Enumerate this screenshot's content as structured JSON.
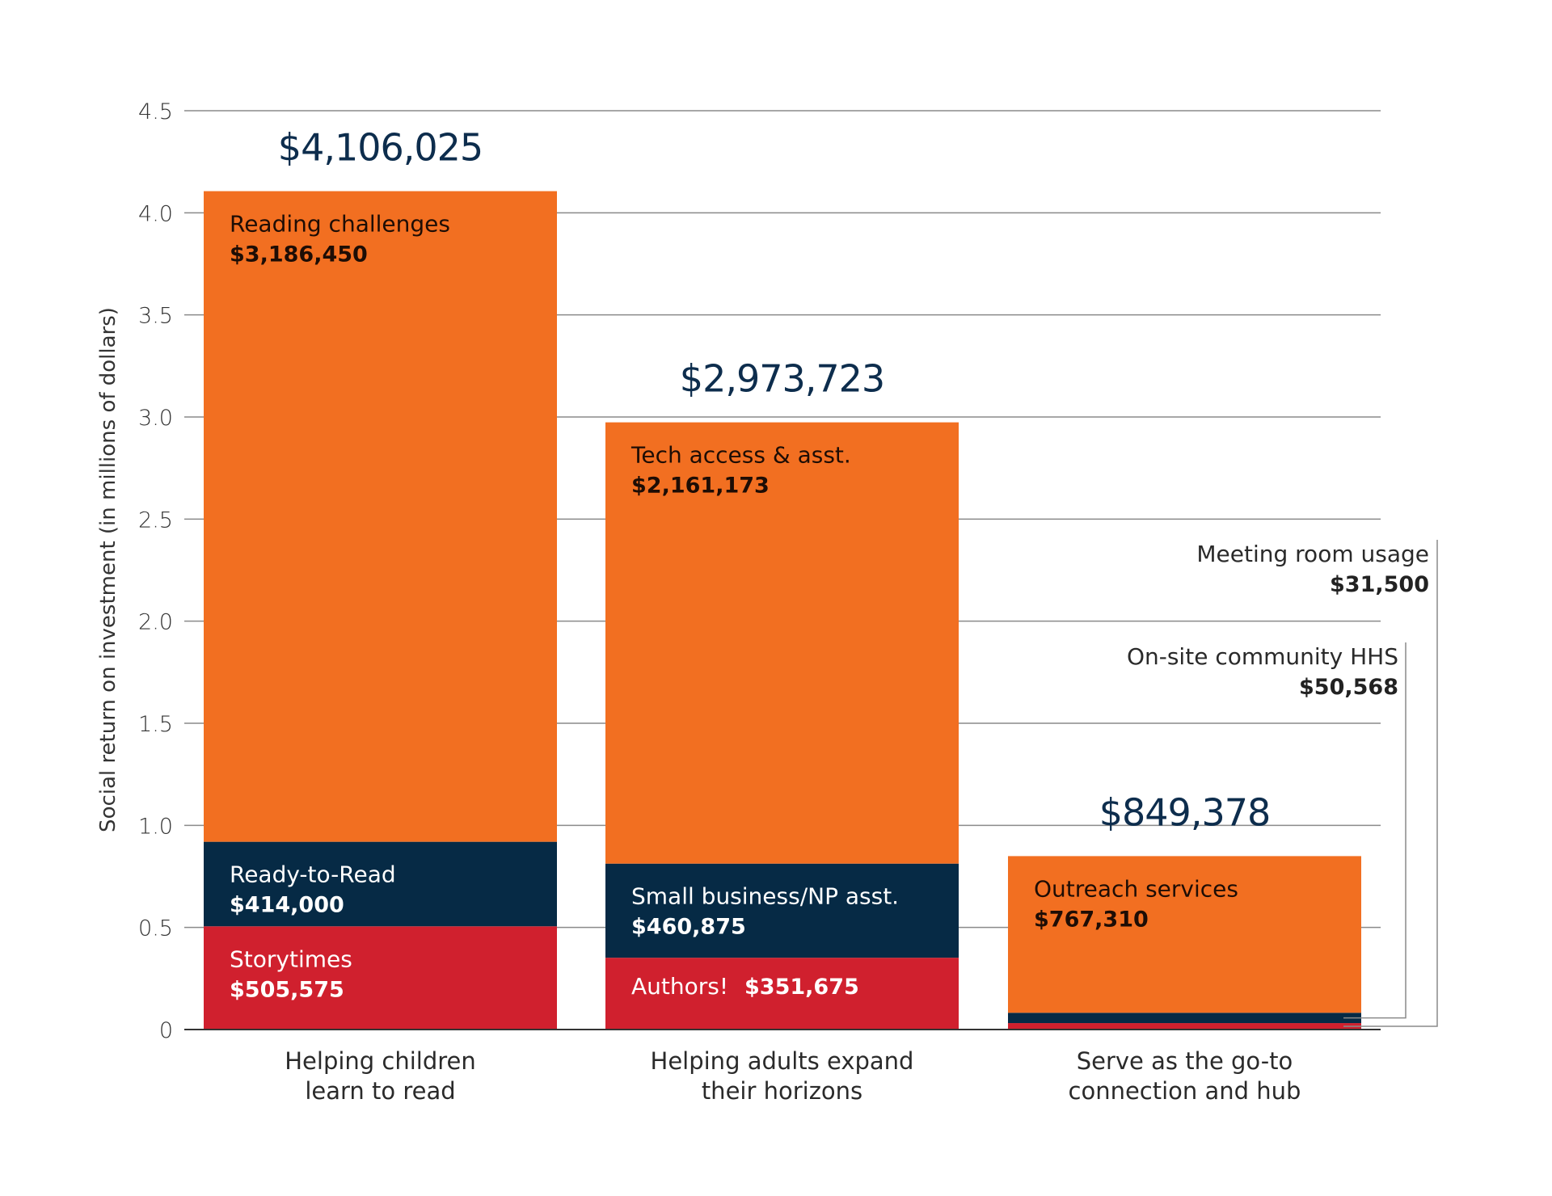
{
  "chart_data": {
    "type": "bar",
    "stacked": true,
    "title": "",
    "xlabel": "",
    "ylabel": "Social return on investment (in millions of dollars)",
    "ylim": [
      0,
      4.5
    ],
    "yticks": [
      0,
      0.5,
      1.0,
      1.5,
      2.0,
      2.5,
      3.0,
      3.5,
      4.0,
      4.5
    ],
    "ytick_labels": [
      "0",
      "0.5",
      "1.0",
      "1.5",
      "2.0",
      "2.5",
      "3.0",
      "3.5",
      "4.0",
      "4.5"
    ],
    "grid": true,
    "legend": "none (segments labeled inline)",
    "colors": {
      "orange": "#F26F21",
      "navy": "#062A45",
      "red": "#D0202E",
      "total_text": "#0D2D4D"
    },
    "categories": [
      {
        "label_lines": [
          "Helping children",
          "learn to read"
        ],
        "total": 4106025,
        "total_label": "$4,106,025",
        "segments": [
          {
            "name": "Storytimes",
            "value": 505575,
            "value_label": "$505,575",
            "color": "red"
          },
          {
            "name": "Ready-to-Read",
            "value": 414000,
            "value_label": "$414,000",
            "color": "navy"
          },
          {
            "name": "Reading challenges",
            "value": 3186450,
            "value_label": "$3,186,450",
            "color": "orange"
          }
        ]
      },
      {
        "label_lines": [
          "Helping adults expand",
          "their horizons"
        ],
        "total": 2973723,
        "total_label": "$2,973,723",
        "segments": [
          {
            "name": "Authors!",
            "value": 351675,
            "value_label": "$351,675",
            "color": "red",
            "inline": true
          },
          {
            "name": "Small business/NP asst.",
            "value": 460875,
            "value_label": "$460,875",
            "color": "navy"
          },
          {
            "name": "Tech access & asst.",
            "value": 2161173,
            "value_label": "$2,161,173",
            "color": "orange"
          }
        ]
      },
      {
        "label_lines": [
          "Serve as the go-to",
          "connection and hub"
        ],
        "total": 849378,
        "total_label": "$849,378",
        "segments": [
          {
            "name": "Meeting room usage",
            "value": 31500,
            "value_label": "$31,500",
            "color": "red",
            "callout": "outer"
          },
          {
            "name": "On-site community HHS",
            "value": 50568,
            "value_label": "$50,568",
            "color": "navy",
            "callout": "inner"
          },
          {
            "name": "Outreach services",
            "value": 767310,
            "value_label": "$767,310",
            "color": "orange"
          }
        ]
      }
    ]
  }
}
